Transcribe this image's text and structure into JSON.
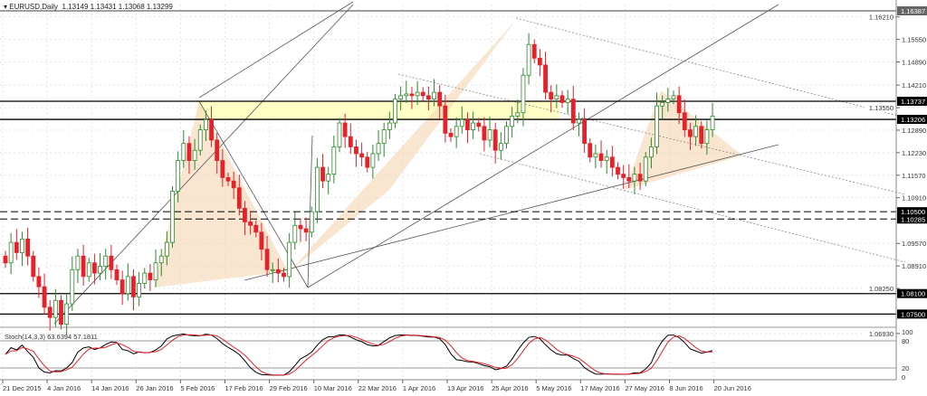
{
  "header": {
    "symbol": "EURUSD,Daily",
    "ohlc": "1.13149 1.13431 1.13068 1.13299"
  },
  "stoch_label": "Stoch(14,3,3) 63.6394 57.1811",
  "colors": {
    "bull": "#2a8a2a",
    "bear": "#e8202a",
    "stoch_main": "#000000",
    "stoch_signal": "#e8202a",
    "zone": "#ffffc0",
    "triangle": "#f5d9b8"
  },
  "chart_data": {
    "type": "candlestick",
    "symbol": "EURUSD",
    "timeframe": "Daily",
    "ylim": [
      1.0655,
      1.1672
    ],
    "y_ticks": [
      "1.16210",
      "1.15550",
      "1.14890",
      "1.14210",
      "1.13550",
      "1.12890",
      "1.12230",
      "1.11570",
      "1.10910",
      "1.09570",
      "1.08910",
      "1.08250",
      "1.06930"
    ],
    "x_ticks": [
      "21 Dec 2015",
      "4 Jan 2016",
      "14 Jan 2016",
      "26 Jan 2016",
      "5 Feb 2016",
      "17 Feb 2016",
      "29 Feb 2016",
      "10 Mar 2016",
      "22 Mar 2016",
      "1 Apr 2016",
      "13 Apr 2016",
      "25 Apr 2016",
      "5 May 2016",
      "17 May 2016",
      "27 May 2016",
      "8 Jun 2016",
      "20 Jun 2016"
    ],
    "levels": [
      {
        "value": 1.16387,
        "label": "1.16387",
        "style": "solid",
        "color": "#666"
      },
      {
        "value": 1.13737,
        "label": "1.13737",
        "style": "solid",
        "color": "#000"
      },
      {
        "value": 1.13206,
        "label": "1.13206",
        "style": "solid",
        "color": "#000"
      },
      {
        "value": 1.105,
        "label": "1.10500",
        "style": "dashed",
        "color": "#000"
      },
      {
        "value": 1.10285,
        "label": "1.10285",
        "style": "dashed",
        "color": "#000"
      },
      {
        "value": 1.081,
        "label": "1.08100",
        "style": "solid",
        "color": "#000"
      },
      {
        "value": 1.075,
        "label": "1.07500",
        "style": "solid",
        "color": "#000"
      }
    ],
    "closes": [
      1.09,
      1.096,
      1.093,
      1.097,
      1.092,
      1.086,
      1.083,
      1.077,
      1.074,
      1.079,
      1.072,
      1.078,
      1.088,
      1.092,
      1.086,
      1.09,
      1.087,
      1.089,
      1.092,
      1.088,
      1.085,
      1.081,
      1.086,
      1.08,
      1.084,
      1.087,
      1.085,
      1.09,
      1.092,
      1.096,
      1.111,
      1.12,
      1.125,
      1.12,
      1.123,
      1.129,
      1.132,
      1.126,
      1.12,
      1.115,
      1.114,
      1.112,
      1.106,
      1.102,
      1.101,
      1.099,
      1.094,
      1.088,
      1.088,
      1.087,
      1.086,
      1.096,
      1.101,
      1.1,
      1.099,
      1.105,
      1.118,
      1.114,
      1.116,
      1.124,
      1.131,
      1.127,
      1.124,
      1.122,
      1.121,
      1.118,
      1.122,
      1.125,
      1.129,
      1.131,
      1.138,
      1.139,
      1.1395,
      1.139,
      1.14,
      1.139,
      1.138,
      1.14,
      1.136,
      1.128,
      1.127,
      1.13,
      1.132,
      1.129,
      1.131,
      1.13,
      1.126,
      1.129,
      1.123,
      1.125,
      1.13,
      1.133,
      1.134,
      1.145,
      1.154,
      1.15,
      1.148,
      1.14,
      1.138,
      1.139,
      1.137,
      1.138,
      1.131,
      1.132,
      1.125,
      1.121,
      1.122,
      1.12,
      1.121,
      1.118,
      1.116,
      1.115,
      1.114,
      1.116,
      1.114,
      1.121,
      1.124,
      1.136,
      1.137,
      1.138,
      1.139,
      1.134,
      1.129,
      1.127,
      1.13,
      1.125,
      1.129,
      1.133
    ],
    "stoch": {
      "params": "14,3,3",
      "main": 63.6394,
      "signal": 57.1811,
      "levels": [
        80,
        20
      ],
      "axis_labels": [
        "100",
        "80",
        "20",
        "0"
      ]
    }
  }
}
